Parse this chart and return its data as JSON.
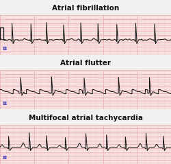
{
  "title1": "Atrial fibrillation",
  "title2": "Atrial flutter",
  "title3": "Multifocal atrial tachycardia",
  "label": "II",
  "bg_color": "#f9e8e8",
  "grid_major_color": "#e8aaaa",
  "grid_minor_color": "#f2cccc",
  "line_color": "#111111",
  "title_color": "#111111",
  "label_color": "#3333bb",
  "fig_bg": "#f0f0f0",
  "figsize": [
    2.51,
    2.39
  ],
  "dpi": 100,
  "title_fontsize": 7.5,
  "label_fontsize": 5.5
}
